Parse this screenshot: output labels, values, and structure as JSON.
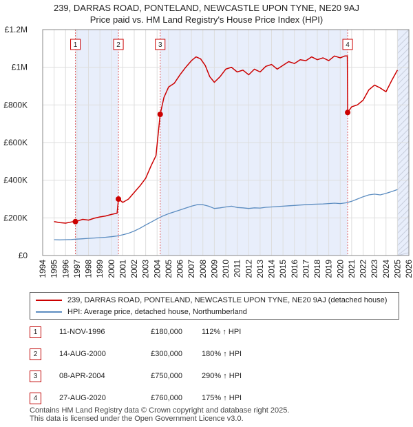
{
  "title_line1": "239, DARRAS ROAD, PONTELAND, NEWCASTLE UPON TYNE, NE20 9AJ",
  "title_line2": "Price paid vs. HM Land Registry's House Price Index (HPI)",
  "colors": {
    "property": "#cc0000",
    "hpi": "#5b8cc0",
    "shade": "#e8eefb",
    "marker_line": "#e06060"
  },
  "chart_data": {
    "type": "line",
    "title": "Price paid vs. HM Land Registry's House Price Index (HPI)",
    "xlabel": "",
    "ylabel": "",
    "xlim": [
      1994,
      2026
    ],
    "ylim": [
      0,
      1200000
    ],
    "x_ticks": [
      1994,
      1995,
      1996,
      1997,
      1998,
      1999,
      2000,
      2001,
      2002,
      2003,
      2004,
      2005,
      2006,
      2007,
      2008,
      2009,
      2010,
      2011,
      2012,
      2013,
      2014,
      2015,
      2016,
      2017,
      2018,
      2019,
      2020,
      2021,
      2022,
      2023,
      2024,
      2025,
      2026
    ],
    "y_ticks": [
      {
        "value": 0,
        "label": "£0"
      },
      {
        "value": 200000,
        "label": "£200K"
      },
      {
        "value": 400000,
        "label": "£400K"
      },
      {
        "value": 600000,
        "label": "£600K"
      },
      {
        "value": 800000,
        "label": "£800K"
      },
      {
        "value": 1000000,
        "label": "£1M"
      },
      {
        "value": 1200000,
        "label": "£1.2M"
      }
    ],
    "shaded_ranges": [
      [
        1996.86,
        2000.62
      ],
      [
        2004.27,
        2020.65
      ],
      [
        2025.0,
        2026.0
      ]
    ],
    "series": [
      {
        "name": "239, DARRAS ROAD, PONTELAND, NEWCASTLE UPON TYNE, NE20 9AJ (detached house)",
        "key": "property",
        "x": [
          1995.0,
          1995.5,
          1996.0,
          1996.5,
          1996.86,
          1997.5,
          1998.0,
          1998.5,
          1999.0,
          1999.5,
          2000.0,
          2000.5,
          2000.62,
          2001.0,
          2001.5,
          2002.0,
          2002.5,
          2003.0,
          2003.5,
          2003.9,
          2004.27,
          2004.6,
          2005.0,
          2005.5,
          2006.0,
          2006.5,
          2007.0,
          2007.4,
          2007.8,
          2008.2,
          2008.6,
          2009.0,
          2009.5,
          2010.0,
          2010.5,
          2011.0,
          2011.5,
          2012.0,
          2012.5,
          2013.0,
          2013.5,
          2014.0,
          2014.5,
          2015.0,
          2015.5,
          2016.0,
          2016.5,
          2017.0,
          2017.5,
          2018.0,
          2018.5,
          2019.0,
          2019.5,
          2020.0,
          2020.4,
          2020.62,
          2020.65,
          2021.0,
          2021.5,
          2022.0,
          2022.5,
          2023.0,
          2023.5,
          2024.0,
          2024.5,
          2025.0
        ],
        "y": [
          180000,
          175000,
          172000,
          178000,
          180000,
          192000,
          188000,
          198000,
          205000,
          210000,
          218000,
          225000,
          300000,
          282000,
          300000,
          335000,
          370000,
          410000,
          480000,
          530000,
          750000,
          840000,
          895000,
          915000,
          960000,
          1000000,
          1035000,
          1055000,
          1045000,
          1010000,
          950000,
          920000,
          950000,
          990000,
          1000000,
          975000,
          985000,
          960000,
          990000,
          975000,
          1005000,
          1015000,
          990000,
          1010000,
          1030000,
          1020000,
          1040000,
          1035000,
          1055000,
          1040000,
          1050000,
          1035000,
          1060000,
          1050000,
          1060000,
          1060000,
          760000,
          790000,
          800000,
          825000,
          880000,
          905000,
          890000,
          870000,
          930000,
          985000
        ]
      },
      {
        "name": "HPI: Average price, detached house, Northumberland",
        "key": "hpi",
        "x": [
          1995.0,
          1995.5,
          1996.0,
          1996.5,
          1997.0,
          1997.5,
          1998.0,
          1998.5,
          1999.0,
          1999.5,
          2000.0,
          2000.5,
          2001.0,
          2001.5,
          2002.0,
          2002.5,
          2003.0,
          2003.5,
          2004.0,
          2004.5,
          2005.0,
          2005.5,
          2006.0,
          2006.5,
          2007.0,
          2007.5,
          2008.0,
          2008.5,
          2009.0,
          2009.5,
          2010.0,
          2010.5,
          2011.0,
          2011.5,
          2012.0,
          2012.5,
          2013.0,
          2013.5,
          2014.0,
          2014.5,
          2015.0,
          2015.5,
          2016.0,
          2016.5,
          2017.0,
          2017.5,
          2018.0,
          2018.5,
          2019.0,
          2019.5,
          2020.0,
          2020.5,
          2021.0,
          2021.5,
          2022.0,
          2022.5,
          2023.0,
          2023.5,
          2024.0,
          2024.5,
          2025.0
        ],
        "y": [
          84000,
          83000,
          84000,
          85000,
          87000,
          89000,
          91000,
          93000,
          95000,
          97000,
          100000,
          104000,
          110000,
          118000,
          130000,
          145000,
          162000,
          178000,
          195000,
          210000,
          222000,
          232000,
          242000,
          252000,
          262000,
          270000,
          270000,
          262000,
          250000,
          253000,
          258000,
          262000,
          255000,
          253000,
          250000,
          253000,
          252000,
          256000,
          258000,
          260000,
          262000,
          264000,
          266000,
          268000,
          270000,
          272000,
          273000,
          274000,
          276000,
          278000,
          276000,
          280000,
          288000,
          300000,
          312000,
          322000,
          326000,
          322000,
          330000,
          340000,
          350000
        ]
      }
    ],
    "transactions": [
      {
        "num": "1",
        "date": "11-NOV-1996",
        "price": "£180,000",
        "hpi": "112% ↑ HPI",
        "x": 1996.86,
        "value": 180000
      },
      {
        "num": "2",
        "date": "14-AUG-2000",
        "price": "£300,000",
        "hpi": "180% ↑ HPI",
        "x": 2000.62,
        "value": 300000
      },
      {
        "num": "3",
        "date": "08-APR-2004",
        "price": "£750,000",
        "hpi": "290% ↑ HPI",
        "x": 2004.27,
        "value": 750000
      },
      {
        "num": "4",
        "date": "27-AUG-2020",
        "price": "£760,000",
        "hpi": "175% ↑ HPI",
        "x": 2020.65,
        "value": 760000
      }
    ]
  },
  "legend": {
    "property_label": "239, DARRAS ROAD, PONTELAND, NEWCASTLE UPON TYNE, NE20 9AJ (detached house)",
    "hpi_label": "HPI: Average price, detached house, Northumberland"
  },
  "footer": {
    "line1": "Contains HM Land Registry data © Crown copyright and database right 2025.",
    "line2": "This data is licensed under the Open Government Licence v3.0."
  }
}
